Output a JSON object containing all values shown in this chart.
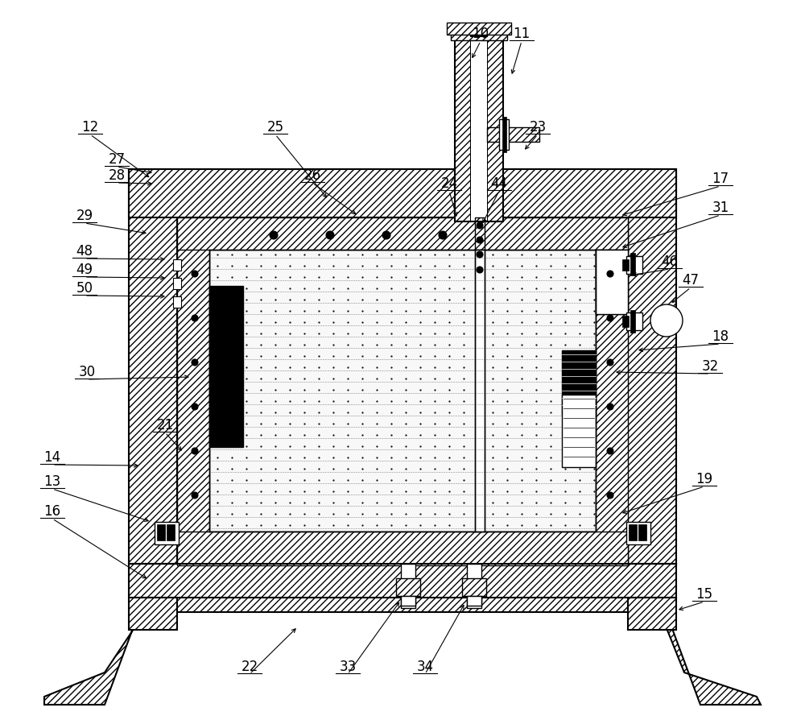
{
  "bg_color": "#ffffff",
  "fig_width": 10.0,
  "fig_height": 8.94,
  "labels": [
    [
      10,
      597,
      42,
      585,
      75
    ],
    [
      11,
      648,
      42,
      635,
      95
    ],
    [
      12,
      112,
      158,
      188,
      222
    ],
    [
      13,
      65,
      598,
      188,
      648
    ],
    [
      14,
      65,
      568,
      175,
      578
    ],
    [
      15,
      875,
      738,
      840,
      758
    ],
    [
      16,
      65,
      635,
      185,
      720
    ],
    [
      17,
      895,
      222,
      770,
      268
    ],
    [
      18,
      895,
      418,
      790,
      435
    ],
    [
      19,
      875,
      595,
      770,
      638
    ],
    [
      21,
      205,
      528,
      228,
      562
    ],
    [
      22,
      310,
      828,
      370,
      778
    ],
    [
      23,
      668,
      158,
      650,
      188
    ],
    [
      24,
      558,
      228,
      568,
      272
    ],
    [
      25,
      342,
      158,
      408,
      248
    ],
    [
      26,
      388,
      218,
      445,
      268
    ],
    [
      27,
      145,
      198,
      192,
      215
    ],
    [
      28,
      145,
      218,
      192,
      228
    ],
    [
      29,
      105,
      268,
      185,
      290
    ],
    [
      30,
      108,
      462,
      238,
      468
    ],
    [
      31,
      895,
      258,
      770,
      308
    ],
    [
      32,
      882,
      455,
      762,
      462
    ],
    [
      33,
      432,
      828,
      498,
      745
    ],
    [
      34,
      528,
      828,
      578,
      748
    ],
    [
      44,
      620,
      228,
      598,
      280
    ],
    [
      46,
      832,
      325,
      782,
      342
    ],
    [
      47,
      858,
      348,
      832,
      378
    ],
    [
      48,
      105,
      312,
      208,
      322
    ],
    [
      49,
      105,
      335,
      208,
      345
    ],
    [
      50,
      105,
      358,
      208,
      368
    ]
  ]
}
